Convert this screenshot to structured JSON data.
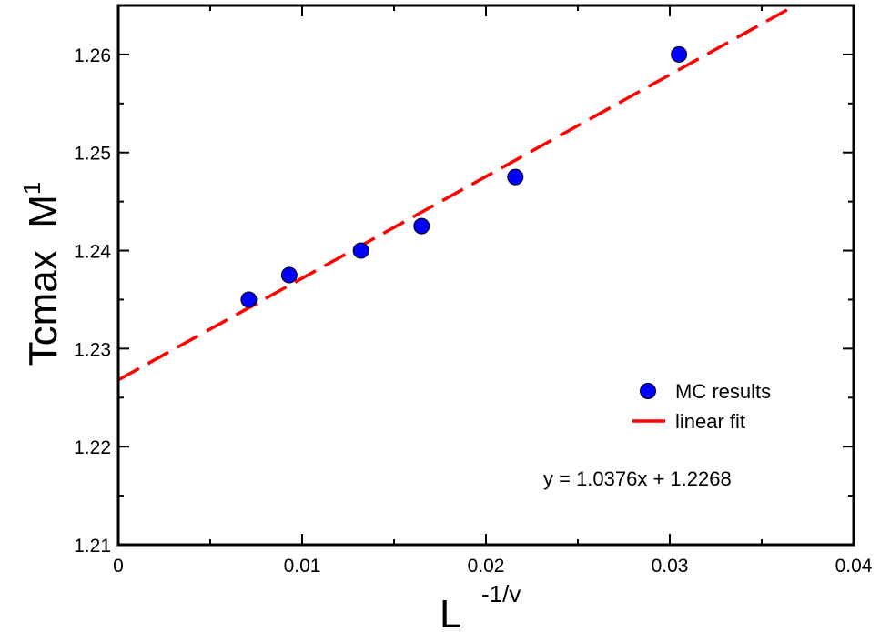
{
  "chart_data": {
    "type": "scatter",
    "title": "",
    "xlabel": {
      "main": "L",
      "superscript": "-1/v"
    },
    "ylabel": {
      "main": "Tcmax  M",
      "superscript": "1"
    },
    "xlim": [
      0,
      0.04
    ],
    "ylim": [
      1.21,
      1.265
    ],
    "xticks": [
      0,
      0.01,
      0.02,
      0.03,
      0.04
    ],
    "xtick_labels": [
      "0",
      "0.01",
      "0.02",
      "0.03",
      "0.04"
    ],
    "yticks": [
      1.21,
      1.22,
      1.23,
      1.24,
      1.25,
      1.26
    ],
    "ytick_labels": [
      "1.21",
      "1.22",
      "1.23",
      "1.24",
      "1.25",
      "1.26"
    ],
    "grid": false,
    "legend_position": "bottom-right",
    "series": [
      {
        "name": "MC results",
        "kind": "scatter",
        "color": "#0000ff",
        "x": [
          0.0071,
          0.0093,
          0.0132,
          0.0165,
          0.0216,
          0.0305
        ],
        "y": [
          1.235,
          1.2375,
          1.24,
          1.2425,
          1.2475,
          1.26
        ]
      },
      {
        "name": "linear fit",
        "kind": "line",
        "style": "dashed",
        "color": "#ff0000",
        "slope": 1.0376,
        "intercept": 1.2268
      }
    ],
    "annotation": "y = 1.0376x + 1.2268"
  }
}
